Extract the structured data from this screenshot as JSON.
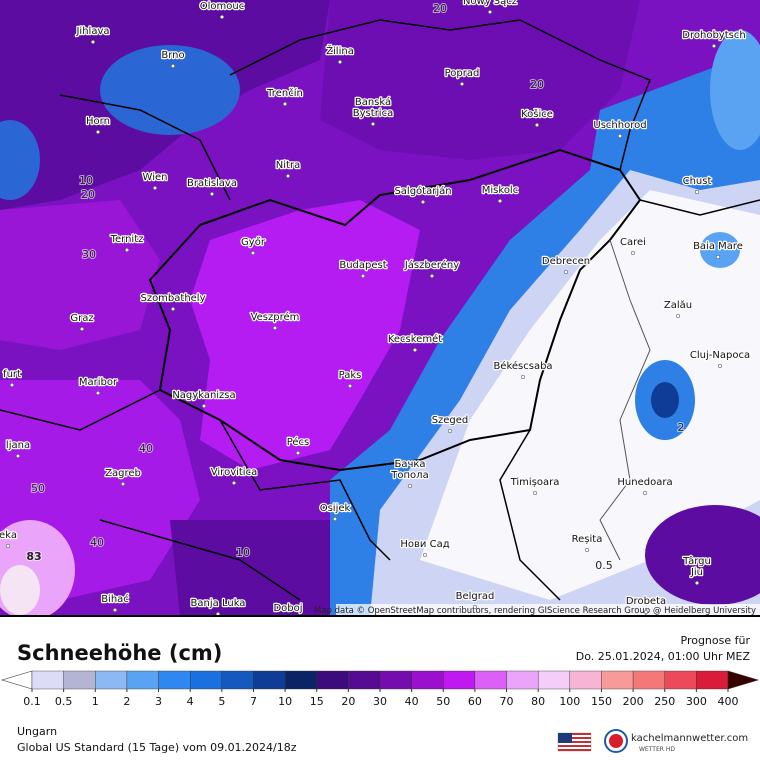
{
  "title": "Schneehöhe (cm)",
  "forecast_label": "Prognose für",
  "forecast_time": "Do. 25.01.2024, 01:00 Uhr MEZ",
  "region": "Ungarn",
  "model": "Global US Standard (15 Tage) vom 09.01.2024/18z",
  "attribution": "Map data © OpenStreetMap contributors, rendering GIScience Research Group @ Heidelberg University",
  "logo": {
    "name": "kachelmannwetter.com",
    "tagline": "WETTER HD"
  },
  "colorbar": {
    "labels": [
      0.1,
      0.5,
      1,
      2,
      3,
      4,
      5,
      7,
      10,
      15,
      20,
      30,
      40,
      50,
      60,
      70,
      80,
      100,
      150,
      200,
      250,
      300,
      400
    ],
    "colors": [
      "#dcdcf6",
      "#b4b4d4",
      "#8cb8f4",
      "#5aa2f2",
      "#2e88f0",
      "#1a70e0",
      "#1458c0",
      "#0e3c96",
      "#0c2466",
      "#3c0c7c",
      "#560c92",
      "#760cae",
      "#9a10cc",
      "#c018f0",
      "#dc60f6",
      "#eaa4fa",
      "#f4cef8",
      "#f8b4d4",
      "#f89a9a",
      "#f47878",
      "#ec4a5a",
      "#d81c3a",
      "#b8001c",
      "#980010",
      "#780010",
      "#5a0000"
    ],
    "under_color": "#ffffff",
    "over_color": "#3a0000"
  },
  "cities": [
    [
      "Olomouc"
    ],
    [
      "Jihlava"
    ],
    [
      "Brno"
    ],
    [
      "Žilina"
    ],
    [
      "Nowy Sącz"
    ],
    [
      "Poprad"
    ],
    [
      "Drohobytsch"
    ],
    [
      "Trenčín"
    ],
    [
      "Banská",
      "Bystrica"
    ],
    [
      "Horn"
    ],
    [
      "Košice"
    ],
    [
      "Uschhorod"
    ],
    [
      "Wien"
    ],
    [
      "Bratislava"
    ],
    [
      "Nitra"
    ],
    [
      "Salgótarján"
    ],
    [
      "Miskolc"
    ],
    [
      "Chust"
    ],
    [
      "Ternitz"
    ],
    [
      "Győr"
    ],
    [
      "Budapest"
    ],
    [
      "Jászberény"
    ],
    [
      "Debrecen"
    ],
    [
      "Carei"
    ],
    [
      "Baia Mare"
    ],
    [
      "Szombathely"
    ],
    [
      "Zalău"
    ],
    [
      "Graz"
    ],
    [
      "Veszprém"
    ],
    [
      "Kecskemét"
    ],
    [
      "Cluj-Napoca"
    ],
    [
      "Békéscsaba"
    ],
    [
      "Paks"
    ],
    [
      "Maribor"
    ],
    [
      "Nagykanizsa"
    ],
    [
      "Szeged"
    ],
    [
      "Pécs"
    ],
    [
      "Zagreb"
    ],
    [
      "Virovitica"
    ],
    [
      "Бачка",
      "Топола"
    ],
    [
      "Timișoara"
    ],
    [
      "Hunedoara"
    ],
    [
      "Osijek"
    ],
    [
      "Нови Сад"
    ],
    [
      "Reșita"
    ],
    [
      "Târgu",
      "Jiu"
    ],
    [
      "Belgrad"
    ],
    [
      "Bihać"
    ],
    [
      "Banja Luka"
    ],
    [
      "Doboj"
    ],
    [
      "Drobeta"
    ],
    [
      "ljana"
    ],
    [
      "furt"
    ],
    [
      "eka"
    ]
  ],
  "contour_labels": [
    "83",
    "50",
    "40",
    "40",
    "30",
    "20",
    "10",
    "10",
    "0.5",
    "2",
    "20",
    "20"
  ]
}
